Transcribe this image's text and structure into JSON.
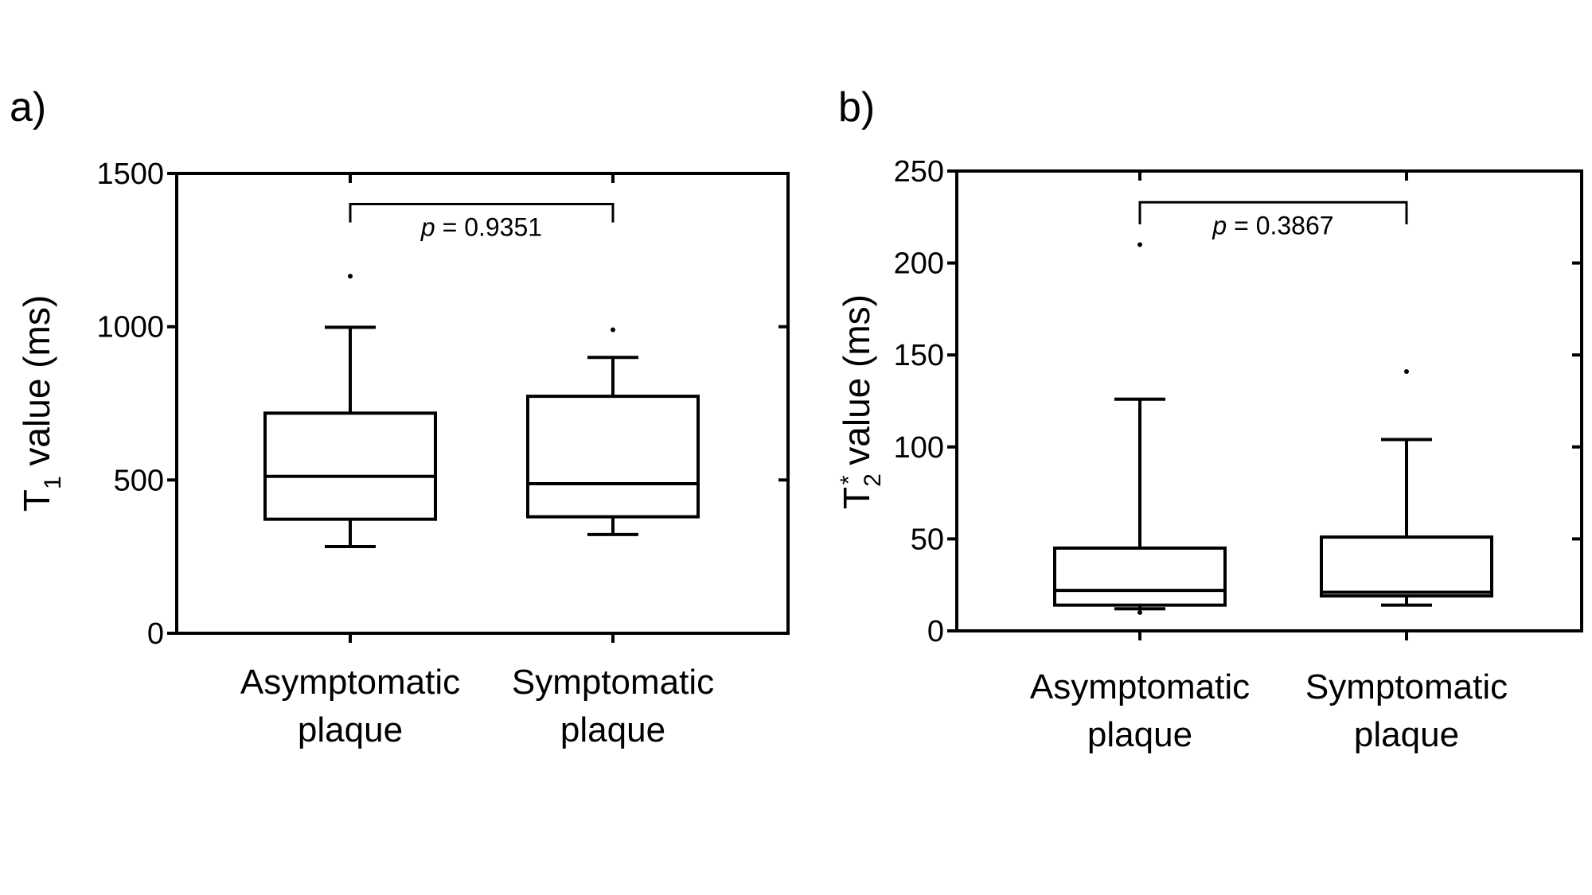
{
  "chart_data": [
    {
      "type": "box",
      "panel_label": "a)",
      "ylabel": {
        "prefix": "T",
        "subscript": "1",
        "superscript": "",
        "suffix": " value (ms)"
      },
      "ylim": [
        0,
        1500
      ],
      "yticks": [
        0,
        500,
        1000,
        1500
      ],
      "categories": [
        "Asymptomatic plaque",
        "Symptomatic plaque"
      ],
      "category_lines": [
        [
          "Asymptomatic",
          "plaque"
        ],
        [
          "Symptomatic",
          "plaque"
        ]
      ],
      "boxes": [
        {
          "category": "Asymptomatic plaque",
          "whisker_low": 283,
          "q1": 372,
          "median": 512,
          "q3": 718,
          "whisker_high": 998,
          "outliers": [
            1165
          ]
        },
        {
          "category": "Symptomatic plaque",
          "whisker_low": 322,
          "q1": 380,
          "median": 488,
          "q3": 773,
          "whisker_high": 900,
          "outliers": [
            990
          ]
        }
      ],
      "significance": {
        "p_symbol": "p",
        "p_text": " = 0.9351",
        "from": 0,
        "to": 1,
        "bracket_y": 1400,
        "tick_down_to": 1340
      }
    },
    {
      "type": "box",
      "panel_label": "b)",
      "ylabel": {
        "prefix": "T",
        "subscript": "2",
        "superscript": "*",
        "suffix": " value (ms)"
      },
      "ylim": [
        0,
        250
      ],
      "yticks": [
        0,
        50,
        100,
        150,
        200,
        250
      ],
      "categories": [
        "Asymptomatic plaque",
        "Symptomatic plaque"
      ],
      "category_lines": [
        [
          "Asymptomatic",
          "plaque"
        ],
        [
          "Symptomatic",
          "plaque"
        ]
      ],
      "boxes": [
        {
          "category": "Asymptomatic plaque",
          "whisker_low": 12,
          "q1": 14,
          "median": 22,
          "q3": 45,
          "whisker_high": 126,
          "outliers": [
            10,
            210
          ]
        },
        {
          "category": "Symptomatic plaque",
          "whisker_low": 14,
          "q1": 19,
          "median": 21,
          "q3": 51,
          "whisker_high": 104,
          "outliers": [
            141
          ]
        }
      ],
      "significance": {
        "p_symbol": "p",
        "p_text": " = 0.3867",
        "from": 0,
        "to": 1,
        "bracket_y": 233,
        "tick_down_to": 221
      }
    }
  ]
}
